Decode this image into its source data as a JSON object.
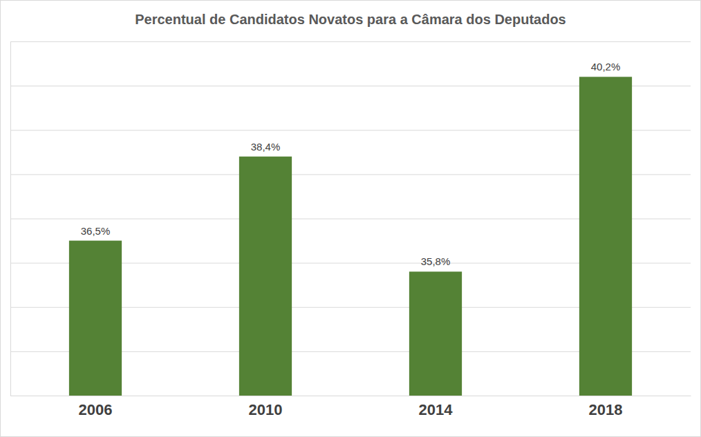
{
  "chart_data": {
    "type": "bar",
    "title": "Percentual de Candidatos Novatos para a Câmara dos Deputados",
    "categories": [
      "2006",
      "2010",
      "2014",
      "2018"
    ],
    "values": [
      36.5,
      38.4,
      35.8,
      40.2
    ],
    "value_labels": [
      "36,5%",
      "38,4%",
      "35,8%",
      "40,2%"
    ],
    "color": "#548235",
    "ylim": [
      33,
      41
    ],
    "yticks": [
      33,
      34,
      35,
      36,
      37,
      38,
      39,
      40,
      41
    ],
    "grid": true,
    "data_labels": true,
    "tick_labels": "x"
  }
}
